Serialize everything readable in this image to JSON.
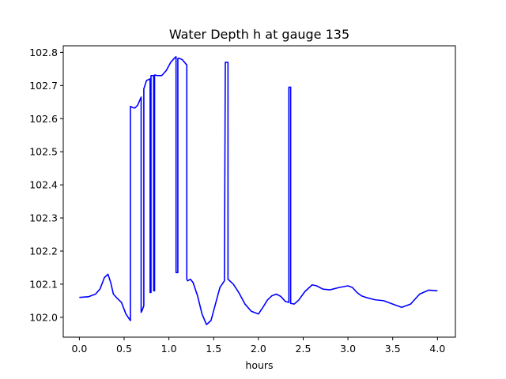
{
  "chart_data": {
    "type": "line",
    "title": "Water Depth h at gauge 135",
    "xlabel": "hours",
    "ylabel": "",
    "xlim": [
      -0.18,
      4.2
    ],
    "ylim": [
      101.94,
      102.82
    ],
    "xticks": [
      0.0,
      0.5,
      1.0,
      1.5,
      2.0,
      2.5,
      3.0,
      3.5,
      4.0
    ],
    "xtick_labels": [
      "0.0",
      "0.5",
      "1.0",
      "1.5",
      "2.0",
      "2.5",
      "3.0",
      "3.5",
      "4.0"
    ],
    "yticks": [
      102.0,
      102.1,
      102.2,
      102.3,
      102.4,
      102.5,
      102.6,
      102.7,
      102.8
    ],
    "ytick_labels": [
      "102.0",
      "102.1",
      "102.2",
      "102.3",
      "102.4",
      "102.5",
      "102.6",
      "102.7",
      "102.8"
    ],
    "grid": false,
    "series": [
      {
        "color": "#0000ff",
        "x": [
          0.0,
          0.1,
          0.18,
          0.23,
          0.28,
          0.32,
          0.35,
          0.38,
          0.42,
          0.47,
          0.52,
          0.57,
          0.57,
          0.6,
          0.62,
          0.65,
          0.69,
          0.69,
          0.7,
          0.72,
          0.72,
          0.75,
          0.79,
          0.79,
          0.8,
          0.8,
          0.83,
          0.83,
          0.84,
          0.84,
          0.87,
          0.92,
          0.97,
          1.02,
          1.07,
          1.08,
          1.08,
          1.1,
          1.1,
          1.12,
          1.15,
          1.2,
          1.2,
          1.21,
          1.21,
          1.24,
          1.27,
          1.32,
          1.37,
          1.42,
          1.47,
          1.52,
          1.57,
          1.62,
          1.63,
          1.63,
          1.66,
          1.66,
          1.72,
          1.78,
          1.85,
          1.92,
          2.0,
          2.05,
          2.1,
          2.15,
          2.2,
          2.25,
          2.3,
          2.34,
          2.34,
          2.36,
          2.36,
          2.4,
          2.45,
          2.52,
          2.6,
          2.65,
          2.72,
          2.8,
          2.9,
          3.0,
          3.05,
          3.1,
          3.15,
          3.2,
          3.3,
          3.4,
          3.5,
          3.6,
          3.7,
          3.8,
          3.9,
          4.0
        ],
        "y": [
          102.06,
          102.062,
          102.07,
          102.085,
          102.12,
          102.13,
          102.105,
          102.07,
          102.058,
          102.045,
          102.01,
          101.99,
          102.637,
          102.633,
          102.632,
          102.64,
          102.665,
          102.015,
          102.02,
          102.035,
          102.69,
          102.715,
          102.72,
          102.075,
          102.075,
          102.73,
          102.73,
          102.08,
          102.08,
          102.732,
          102.73,
          102.73,
          102.745,
          102.77,
          102.785,
          102.787,
          102.135,
          102.135,
          102.782,
          102.782,
          102.778,
          102.762,
          102.115,
          102.11,
          102.11,
          102.115,
          102.105,
          102.065,
          102.01,
          101.978,
          101.99,
          102.04,
          102.09,
          102.11,
          102.77,
          102.77,
          102.77,
          102.115,
          102.1,
          102.075,
          102.04,
          102.018,
          102.01,
          102.03,
          102.052,
          102.065,
          102.07,
          102.063,
          102.048,
          102.045,
          102.695,
          102.695,
          102.042,
          102.04,
          102.052,
          102.078,
          102.098,
          102.095,
          102.085,
          102.083,
          102.09,
          102.095,
          102.09,
          102.075,
          102.065,
          102.06,
          102.053,
          102.05,
          102.04,
          102.03,
          102.04,
          102.07,
          102.082,
          102.08
        ]
      }
    ]
  }
}
